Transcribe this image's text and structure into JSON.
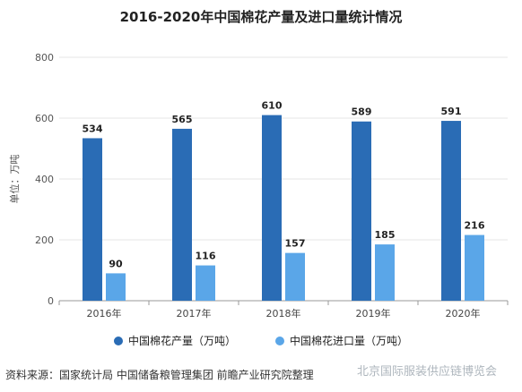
{
  "chart_data": {
    "type": "bar",
    "title": "2016-2020年中国棉花产量及进口量统计情况",
    "ylabel": "单位：万吨",
    "xlabel": "",
    "categories": [
      "2016年",
      "2017年",
      "2018年",
      "2019年",
      "2020年"
    ],
    "series": [
      {
        "name": "中国棉花产量（万吨）",
        "values": [
          534,
          565,
          610,
          589,
          591
        ],
        "color": "#2a6cb5"
      },
      {
        "name": "中国棉花进口量（万吨）",
        "values": [
          90,
          116,
          157,
          185,
          216
        ],
        "color": "#5aa6e8"
      }
    ],
    "ylim": [
      0,
      800
    ],
    "yticks": [
      "0",
      "200",
      "400",
      "600",
      "800"
    ],
    "grid": true,
    "legend_position": "bottom"
  },
  "footer": {
    "source": "资料来源：国家统计局 中国储备粮管理集团 前瞻产业研究院整理",
    "watermark": "北京国际服装供应链博览会"
  }
}
